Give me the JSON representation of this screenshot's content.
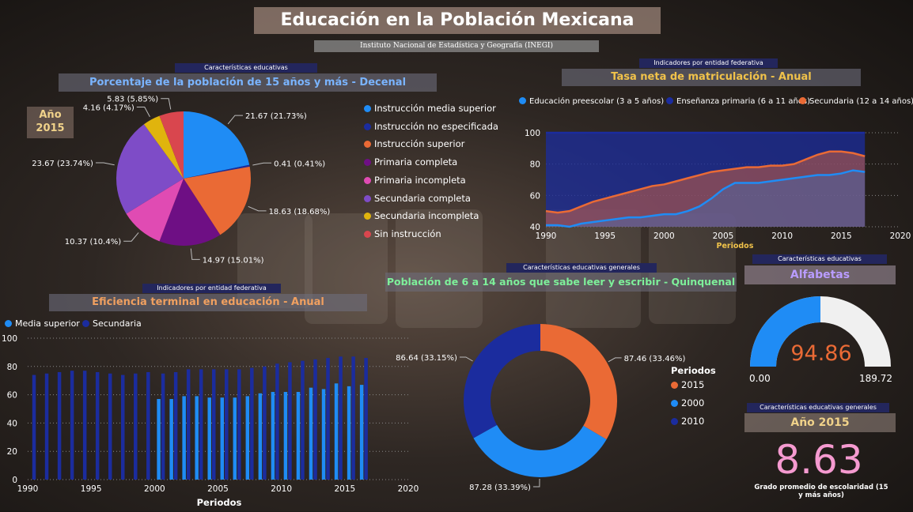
{
  "header": {
    "title": "Educación en la Población Mexicana",
    "subtitle": "Instituto Nacional de Estadística y Geografía (INEGI)"
  },
  "pie_panel": {
    "pill": "Características educativas",
    "title": "Porcentaje de la población de 15 años y más - Decenal",
    "year_label": "Año",
    "year_value": "2015"
  },
  "enrollment_panel": {
    "pill": "Indicadores por entidad federativa",
    "title": "Tasa neta de matriculación - Anual"
  },
  "efficiency_panel": {
    "pill": "Indicadores por entidad federativa",
    "title": "Eficiencia terminal en educación - Anual"
  },
  "literacy_panel": {
    "pill": "Características educativas generales",
    "title": "Población de 6 a 14 años que sabe leer y escribir - Quinquenal",
    "legend_title": "Periodos"
  },
  "alphabet_panel": {
    "pill": "Características educativas",
    "title": "Alfabetas",
    "value": "94.86",
    "min": "0.00",
    "max": "189.72"
  },
  "schooling_panel": {
    "pill": "Características educativas generales",
    "title": "Año 2015",
    "value": "8.63",
    "caption": "Grado promedio de escolaridad (15 y más años)"
  },
  "chart_data": [
    {
      "type": "pie",
      "title": "Porcentaje de la población de 15 años y más - Decenal",
      "categories": [
        "Instrucción media superior",
        "Instrucción no especificada",
        "Instrucción superior",
        "Primaria completa",
        "Primaria incompleta",
        "Secundaria completa",
        "Secundaria incompleta",
        "Sin instrucción"
      ],
      "values": [
        21.67,
        0.41,
        18.63,
        14.97,
        10.37,
        23.67,
        4.16,
        5.83
      ],
      "data_labels": [
        "21.67 (21.73%)",
        "0.41 (0.41%)",
        "18.63 (18.68%)",
        "14.97 (15.01%)",
        "10.37 (10.4%)",
        "23.67 (23.74%)",
        "4.16 (4.17%)",
        "5.83 (5.85%)"
      ],
      "colors": [
        "#1f8cf5",
        "#1b2c9e",
        "#ea6a35",
        "#6e0f84",
        "#e04bb3",
        "#7e4cc7",
        "#e0b40d",
        "#d9464e"
      ]
    },
    {
      "type": "area",
      "title": "Tasa neta de matriculación - Anual",
      "xlabel": "Periodos",
      "x": [
        1990,
        1991,
        1992,
        1993,
        1994,
        1995,
        1996,
        1997,
        1998,
        1999,
        2000,
        2001,
        2002,
        2003,
        2004,
        2005,
        2006,
        2007,
        2008,
        2009,
        2010,
        2011,
        2012,
        2013,
        2014,
        2015,
        2016,
        2017
      ],
      "series": [
        {
          "name": "Educación preescolar (3 a 5 años)",
          "color": "#1f8cf5",
          "values": [
            41,
            41,
            40,
            42,
            43,
            44,
            45,
            46,
            46,
            47,
            48,
            48,
            50,
            53,
            58,
            64,
            68,
            68,
            68,
            69,
            70,
            71,
            72,
            73,
            73,
            74,
            76,
            75
          ]
        },
        {
          "name": "Enseñanza primaria (6 a 11 años)",
          "color": "#1b2c9e",
          "values": [
            100,
            100,
            100,
            100,
            100,
            100,
            100,
            100,
            100,
            100,
            100,
            100,
            100,
            100,
            100,
            100,
            100,
            100,
            100,
            100,
            100,
            100,
            100,
            100,
            100,
            100,
            100,
            100
          ]
        },
        {
          "name": "Secundaria (12 a 14 años)",
          "color": "#ea6a35",
          "values": [
            50,
            49,
            50,
            53,
            56,
            58,
            60,
            62,
            64,
            66,
            67,
            69,
            71,
            73,
            75,
            76,
            77,
            78,
            78,
            79,
            79,
            80,
            83,
            86,
            88,
            88,
            87,
            85
          ]
        }
      ],
      "xlim": [
        1990,
        2020
      ],
      "ylim": [
        40,
        100
      ],
      "xticks": [
        1990,
        1995,
        2000,
        2005,
        2010,
        2015,
        2020
      ],
      "yticks": [
        40,
        60,
        80,
        100
      ]
    },
    {
      "type": "bar",
      "title": "Eficiencia terminal en educación - Anual",
      "xlabel": "Periodos",
      "categories": [
        1990,
        1991,
        1992,
        1993,
        1994,
        1995,
        1996,
        1997,
        1998,
        1999,
        2000,
        2001,
        2002,
        2003,
        2004,
        2005,
        2006,
        2007,
        2008,
        2009,
        2010,
        2011,
        2012,
        2013,
        2014,
        2015,
        2016
      ],
      "series": [
        {
          "name": "Media superior",
          "color": "#1f8cf5",
          "values": [
            null,
            null,
            null,
            null,
            null,
            null,
            null,
            null,
            null,
            null,
            57,
            57,
            59,
            59,
            58,
            58,
            58,
            59,
            61,
            62,
            62,
            62,
            65,
            64,
            68,
            66,
            67
          ]
        },
        {
          "name": "Secundaria",
          "color": "#1b2c9e",
          "values": [
            74,
            75,
            76,
            77,
            77,
            76,
            75,
            74,
            75,
            76,
            75,
            76,
            78,
            78,
            78,
            78,
            78,
            79,
            80,
            82,
            83,
            84,
            85,
            86,
            87,
            87,
            86
          ]
        }
      ],
      "xlim": [
        1990,
        2020
      ],
      "ylim": [
        0,
        100
      ],
      "xticks": [
        1990,
        1995,
        2000,
        2005,
        2010,
        2015,
        2020
      ],
      "yticks": [
        0,
        20,
        40,
        60,
        80,
        100
      ]
    },
    {
      "type": "pie",
      "title": "Población de 6 a 14 años que sabe leer y escribir - Quinquenal",
      "categories": [
        "2015",
        "2000",
        "2010"
      ],
      "values": [
        87.46,
        87.28,
        86.64
      ],
      "data_labels": [
        "87.46 (33.46%)",
        "87.28 (33.39%)",
        "86.64 (33.15%)"
      ],
      "colors": [
        "#ea6a35",
        "#1f8cf5",
        "#1b2c9e"
      ]
    },
    {
      "type": "gauge",
      "title": "Alfabetas",
      "value": 94.86,
      "min": 0.0,
      "max": 189.72,
      "fill_color": "#1f8cf5",
      "track_color": "#f0f0f0"
    }
  ]
}
